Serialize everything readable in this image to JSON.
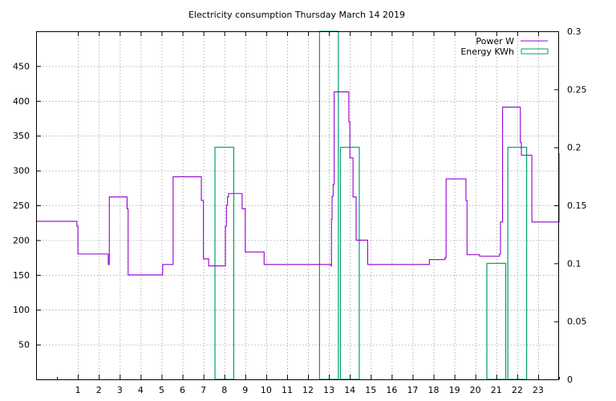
{
  "chart_data": {
    "type": "line",
    "title": "Electricity consumption Thursday March 14 2019",
    "xlabel": "",
    "ylabel": "",
    "y2label": "",
    "xlim": [
      -1,
      24
    ],
    "ylim": [
      0,
      500
    ],
    "y2lim": [
      0,
      0.3
    ],
    "x_ticks": [
      1,
      2,
      3,
      4,
      5,
      6,
      7,
      8,
      9,
      10,
      11,
      12,
      13,
      14,
      15,
      16,
      17,
      18,
      19,
      20,
      21,
      22,
      23
    ],
    "y_ticks": [
      50,
      100,
      150,
      200,
      250,
      300,
      350,
      400,
      450
    ],
    "y2_ticks": [
      0,
      0.05,
      0.1,
      0.15,
      0.2,
      0.25,
      0.3
    ],
    "y2_tick_labels": [
      "0",
      "0.05",
      "0.1",
      "0.15",
      "0.2",
      "0.25",
      "0.3"
    ],
    "grid": true,
    "legend_position": "top-right",
    "series": [
      {
        "name": "Power W",
        "axis": "y1",
        "style": "step-line",
        "color": "#9400d3",
        "x": [
          -1,
          0.9,
          0.95,
          1.0,
          2.4,
          2.45,
          2.5,
          3.3,
          3.35,
          3.4,
          5.0,
          5.05,
          5.5,
          5.55,
          6.85,
          6.9,
          7.0,
          7.25,
          7.5,
          7.6,
          7.8,
          8.0,
          8.05,
          8.1,
          8.15,
          8.2,
          8.8,
          8.85,
          9.0,
          9.8,
          9.9,
          12.1,
          12.2,
          12.3,
          12.4,
          13.0,
          13.1,
          13.12,
          13.15,
          13.2,
          13.25,
          13.9,
          13.95,
          14.0,
          14.1,
          14.15,
          14.3,
          14.8,
          14.85,
          17.7,
          17.8,
          18.5,
          18.55,
          18.6,
          19.5,
          19.55,
          19.6,
          20.1,
          20.2,
          21.1,
          21.15,
          21.2,
          21.3,
          22.1,
          22.15,
          22.2,
          22.65,
          22.7,
          23.95,
          24.0
        ],
        "values": [
          227,
          227,
          220,
          180,
          180,
          165,
          262,
          262,
          245,
          150,
          150,
          165,
          165,
          291,
          291,
          257,
          173,
          163,
          163,
          163,
          163,
          163,
          220,
          250,
          262,
          267,
          267,
          245,
          183,
          183,
          165,
          165,
          165,
          165,
          165,
          165,
          163,
          230,
          263,
          280,
          413,
          413,
          370,
          318,
          318,
          262,
          200,
          200,
          165,
          165,
          172,
          172,
          175,
          288,
          288,
          257,
          179,
          179,
          177,
          177,
          180,
          226,
          391,
          391,
          340,
          322,
          322,
          226,
          226,
          325
        ]
      },
      {
        "name": "Energy KWh",
        "axis": "y2",
        "style": "boxes",
        "color": "#009e73",
        "x": [
          8,
          13,
          14,
          21,
          22
        ],
        "values": [
          0.2,
          0.3,
          0.2,
          0.1,
          0.2
        ],
        "note_bar_13_clipped": "bar at 13 extends to top of plot area"
      }
    ],
    "legend": [
      {
        "label": "Power W",
        "symbol": "line",
        "color": "#9400d3"
      },
      {
        "label": "Energy KWh",
        "symbol": "box",
        "color": "#009e73"
      }
    ]
  }
}
